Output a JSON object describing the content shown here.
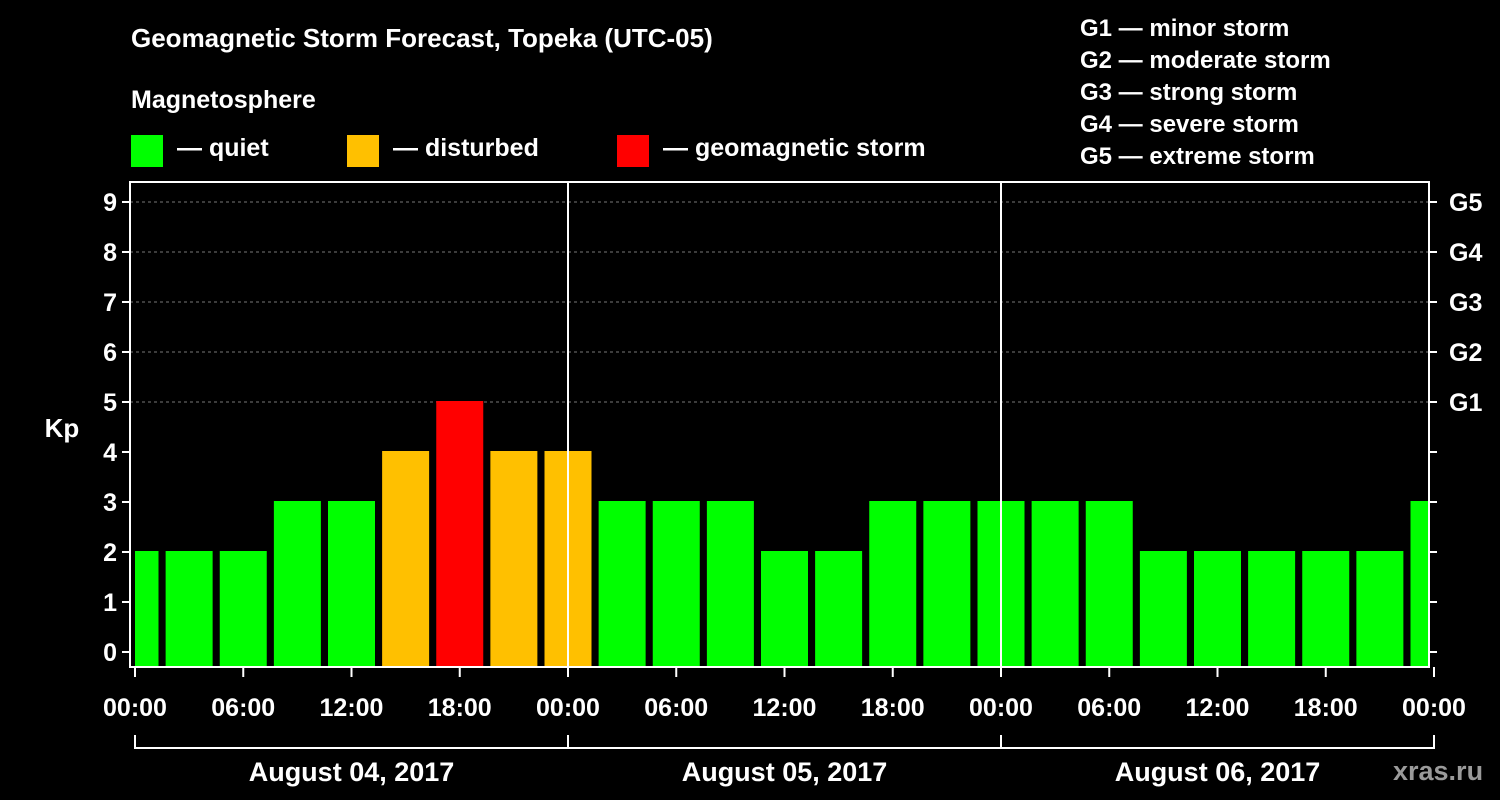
{
  "title": "Geomagnetic Storm Forecast, Topeka (UTC-05)",
  "magnetosphere_label": "Magnetosphere",
  "legend": [
    {
      "label": "— quiet",
      "color": "#00ff00"
    },
    {
      "label": "— disturbed",
      "color": "#ffc000"
    },
    {
      "label": "— geomagnetic storm",
      "color": "#ff0000"
    }
  ],
  "storm_scale": [
    "G1 — minor storm",
    "G2 — moderate storm",
    "G3 — strong storm",
    "G4 — severe storm",
    "G5 — extreme storm"
  ],
  "site": "xras.ru",
  "chart_data": {
    "type": "bar",
    "ylabel": "Kp",
    "ylim": [
      0,
      9
    ],
    "yticks": [
      "0",
      "1",
      "2",
      "3",
      "4",
      "5",
      "6",
      "7",
      "8",
      "9"
    ],
    "right_ticks": [
      {
        "kp": 5,
        "label": "G1"
      },
      {
        "kp": 6,
        "label": "G2"
      },
      {
        "kp": 7,
        "label": "G3"
      },
      {
        "kp": 8,
        "label": "G4"
      },
      {
        "kp": 9,
        "label": "G5"
      }
    ],
    "x_tick_labels": [
      "00:00",
      "06:00",
      "12:00",
      "18:00",
      "00:00",
      "06:00",
      "12:00",
      "18:00",
      "00:00",
      "06:00",
      "12:00",
      "18:00",
      "00:00"
    ],
    "days": [
      "August 04, 2017",
      "August 05, 2017",
      "August 06, 2017"
    ],
    "x_hours": [
      0,
      3,
      6,
      9,
      12,
      15,
      18,
      21,
      24,
      27,
      30,
      33,
      36,
      39,
      42,
      45,
      48,
      51,
      54,
      57,
      60,
      63,
      66,
      69,
      72
    ],
    "values": [
      2,
      2,
      2,
      3,
      3,
      4,
      5,
      4,
      4,
      3,
      3,
      3,
      2,
      2,
      3,
      3,
      3,
      3,
      3,
      2,
      2,
      2,
      2,
      2,
      3
    ],
    "color_thresholds": {
      "quiet_max": 3,
      "disturbed": 4,
      "storm_min": 5
    },
    "grid": true
  }
}
